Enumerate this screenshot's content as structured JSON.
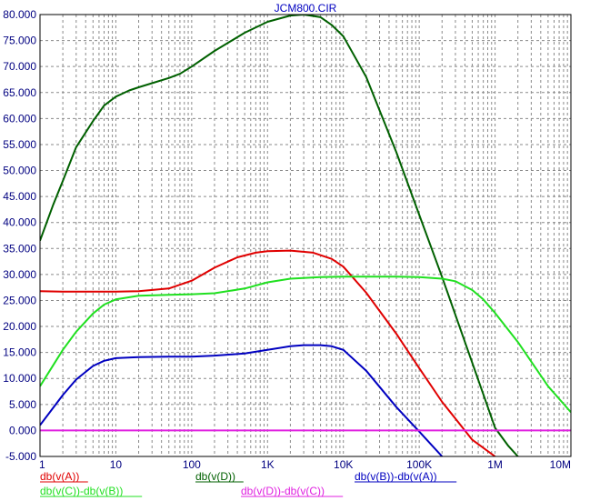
{
  "chart_data": {
    "type": "line",
    "title": "JCM800.CIR",
    "x_scale": "log",
    "xlim": [
      1,
      10000000
    ],
    "ylim": [
      -5,
      80
    ],
    "grid": true,
    "x_ticks": [
      {
        "value": 1,
        "label": "1"
      },
      {
        "value": 10,
        "label": "10"
      },
      {
        "value": 100,
        "label": "100"
      },
      {
        "value": 1000,
        "label": "1K"
      },
      {
        "value": 10000,
        "label": "10K"
      },
      {
        "value": 100000,
        "label": "100K"
      },
      {
        "value": 1000000,
        "label": "1M"
      },
      {
        "value": 10000000,
        "label": "10M"
      }
    ],
    "y_ticks": [
      {
        "value": 80,
        "label": "80.000"
      },
      {
        "value": 75,
        "label": "75.000"
      },
      {
        "value": 70,
        "label": "70.000"
      },
      {
        "value": 65,
        "label": "65.000"
      },
      {
        "value": 60,
        "label": "60.000"
      },
      {
        "value": 55,
        "label": "55.000"
      },
      {
        "value": 50,
        "label": "50.000"
      },
      {
        "value": 45,
        "label": "45.000"
      },
      {
        "value": 40,
        "label": "40.000"
      },
      {
        "value": 35,
        "label": "35.000"
      },
      {
        "value": 30,
        "label": "30.000"
      },
      {
        "value": 25,
        "label": "25.000"
      },
      {
        "value": 20,
        "label": "20.000"
      },
      {
        "value": 15,
        "label": "15.000"
      },
      {
        "value": 10,
        "label": "10.000"
      },
      {
        "value": 5,
        "label": "5.000"
      },
      {
        "value": 0,
        "label": "0.000"
      },
      {
        "value": -5,
        "label": "-5.000"
      }
    ],
    "series": [
      {
        "name": "db(v(A))",
        "color": "#e00000",
        "x": [
          1,
          2,
          5,
          10,
          20,
          50,
          100,
          200,
          400,
          700,
          1000,
          2000,
          4000,
          7000,
          10000,
          20000,
          50000,
          100000,
          200000,
          500000,
          1000000
        ],
        "y": [
          26.8,
          26.7,
          26.7,
          26.7,
          26.8,
          27.3,
          28.8,
          31.3,
          33.3,
          34.2,
          34.5,
          34.6,
          34.2,
          33.0,
          31.5,
          26.5,
          18.6,
          12.0,
          5.5,
          -1.8,
          -5.0
        ]
      },
      {
        "name": "db(v(D))",
        "color": "#006000",
        "x": [
          1,
          1.5,
          2,
          3,
          5,
          7,
          10,
          15,
          20,
          30,
          50,
          70,
          100,
          200,
          500,
          1000,
          2000,
          3000,
          5000,
          7000,
          10000,
          20000,
          50000,
          100000,
          200000,
          500000,
          1000000,
          1500000,
          2000000
        ],
        "y": [
          36.5,
          43.5,
          48.0,
          54.5,
          59.5,
          62.5,
          64.2,
          65.4,
          66.0,
          66.8,
          67.8,
          68.6,
          70.0,
          73.0,
          76.5,
          78.6,
          79.8,
          80.0,
          79.5,
          78.0,
          75.8,
          68.0,
          53.5,
          41.5,
          29.5,
          13.0,
          0.5,
          -3.0,
          -5.0
        ]
      },
      {
        "name": "db(v(B))-db(v(A))",
        "color": "#0000c0",
        "x": [
          1,
          2,
          3,
          5,
          7,
          10,
          20,
          50,
          100,
          200,
          500,
          1000,
          2000,
          3000,
          5000,
          7000,
          10000,
          20000,
          50000,
          100000,
          200000
        ],
        "y": [
          1.0,
          6.8,
          9.8,
          12.4,
          13.4,
          13.9,
          14.1,
          14.2,
          14.2,
          14.4,
          14.8,
          15.5,
          16.2,
          16.4,
          16.4,
          16.2,
          15.5,
          11.5,
          4.5,
          -0.2,
          -5.0
        ]
      },
      {
        "name": "db(v(C))-db(v(B))",
        "color": "#20e020",
        "x": [
          1,
          2,
          3,
          5,
          7,
          10,
          20,
          50,
          100,
          200,
          500,
          1000,
          2000,
          5000,
          10000,
          20000,
          50000,
          100000,
          200000,
          300000,
          500000,
          700000,
          1000000,
          2000000,
          5000000,
          10000000
        ],
        "y": [
          8.5,
          15.5,
          19.0,
          22.5,
          24.2,
          25.2,
          25.9,
          26.1,
          26.2,
          26.4,
          27.3,
          28.5,
          29.2,
          29.5,
          29.6,
          29.6,
          29.6,
          29.5,
          29.2,
          28.7,
          27.0,
          25.2,
          22.6,
          17.0,
          8.5,
          3.5
        ]
      },
      {
        "name": "db(v(D))-db(v(C))",
        "color": "#e020e0",
        "x": [
          1,
          10000000
        ],
        "y": [
          0.0,
          0.0
        ]
      }
    ],
    "legend_placement": "bottom"
  }
}
